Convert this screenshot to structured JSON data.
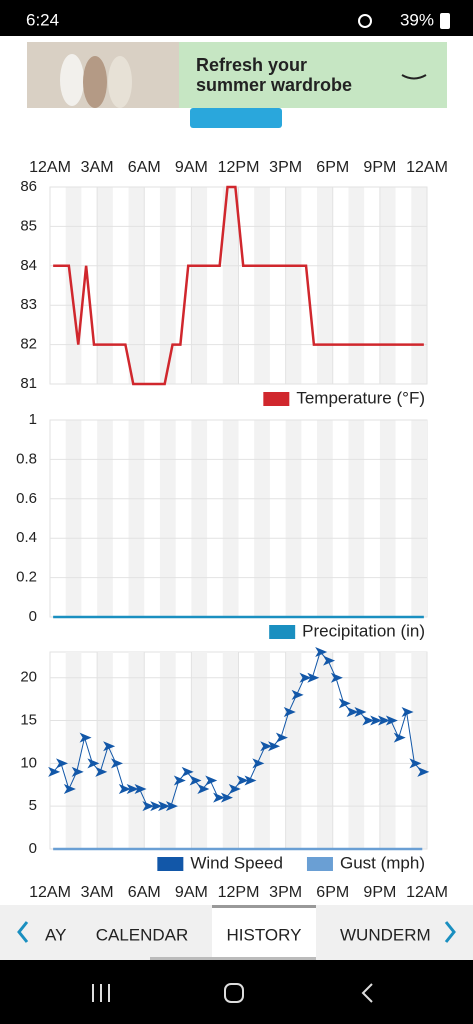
{
  "status_bar": {
    "time": "6:24",
    "battery": "39%"
  },
  "ad": {
    "headline_1": "Refresh your",
    "headline_2": "summer wardrobe"
  },
  "tabs": [
    "AY",
    "CALENDAR",
    "HISTORY",
    "WUNDERM"
  ],
  "chart_data": [
    {
      "type": "line",
      "xlim": [
        0,
        24
      ],
      "xticks": [
        {
          "value": 0,
          "label": "12AM"
        },
        {
          "value": 3,
          "label": "3AM"
        },
        {
          "value": 6,
          "label": "6AM"
        },
        {
          "value": 9,
          "label": "9AM"
        },
        {
          "value": 12,
          "label": "12PM"
        },
        {
          "value": 15,
          "label": "3PM"
        },
        {
          "value": 18,
          "label": "6PM"
        },
        {
          "value": 21,
          "label": "9PM"
        },
        {
          "value": 24,
          "label": "12AM"
        }
      ],
      "ylim": [
        81,
        86
      ],
      "yticks": [
        81,
        82,
        83,
        84,
        85,
        86
      ],
      "grid": true,
      "series": [
        {
          "name": "Temperature (°F)",
          "color": "#d0272d",
          "x": [
            0.2,
            1.2,
            1.8,
            2.3,
            2.8,
            4.8,
            5.3,
            7.3,
            7.8,
            8.3,
            8.8,
            10.8,
            11.3,
            11.8,
            12.3,
            16.3,
            16.8,
            23.8
          ],
          "values": [
            84,
            84,
            82,
            84,
            82,
            82,
            81,
            81,
            82,
            82,
            84,
            84,
            86,
            86,
            84,
            84,
            82,
            82
          ]
        }
      ]
    },
    {
      "type": "line",
      "xlim": [
        0,
        24
      ],
      "ylim": [
        0,
        1
      ],
      "yticks": [
        0,
        0.2,
        0.4,
        0.6,
        0.8,
        1
      ],
      "grid": true,
      "series": [
        {
          "name": "Precipitation (in)",
          "color": "#1a8fc0",
          "x": [
            0.2,
            23.8
          ],
          "values": [
            0,
            0
          ]
        }
      ]
    },
    {
      "type": "line",
      "xlim": [
        0,
        24
      ],
      "xticks": [
        {
          "value": 0,
          "label": "12AM"
        },
        {
          "value": 3,
          "label": "3AM"
        },
        {
          "value": 6,
          "label": "6AM"
        },
        {
          "value": 9,
          "label": "9AM"
        },
        {
          "value": 12,
          "label": "12PM"
        },
        {
          "value": 15,
          "label": "3PM"
        },
        {
          "value": 18,
          "label": "6PM"
        },
        {
          "value": 21,
          "label": "9PM"
        },
        {
          "value": 24,
          "label": "12AM"
        }
      ],
      "ylim": [
        0,
        23
      ],
      "yticks": [
        0,
        5,
        10,
        15,
        20
      ],
      "grid": true,
      "series": [
        {
          "name": "Wind Speed",
          "color": "#1257a8",
          "marker": "arrow",
          "x": [
            0.2,
            0.7,
            1.2,
            1.7,
            2.2,
            2.7,
            3.2,
            3.7,
            4.2,
            4.7,
            5.2,
            5.7,
            6.2,
            6.7,
            7.2,
            7.7,
            8.2,
            8.7,
            9.2,
            9.7,
            10.2,
            10.7,
            11.2,
            11.7,
            12.2,
            12.7,
            13.2,
            13.7,
            14.2,
            14.7,
            15.2,
            15.7,
            16.2,
            16.7,
            17.2,
            17.7,
            18.2,
            18.7,
            19.2,
            19.7,
            20.2,
            20.7,
            21.2,
            21.7,
            22.2,
            22.7,
            23.2,
            23.7
          ],
          "values": [
            9,
            10,
            7,
            9,
            13,
            10,
            9,
            12,
            10,
            7,
            7,
            7,
            5,
            5,
            5,
            5,
            8,
            9,
            8,
            7,
            8,
            6,
            6,
            7,
            8,
            8,
            10,
            12,
            12,
            13,
            16,
            18,
            20,
            20,
            23,
            22,
            20,
            17,
            16,
            16,
            15,
            15,
            15,
            15,
            13,
            16,
            10,
            9
          ]
        },
        {
          "name": "Gust (mph)",
          "color": "#6a9fd4",
          "x": [
            0.2,
            23.7
          ],
          "values": [
            0,
            0
          ]
        }
      ]
    }
  ]
}
